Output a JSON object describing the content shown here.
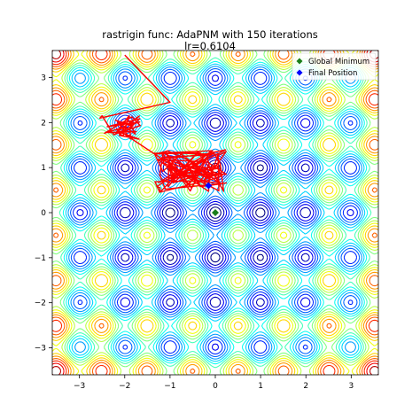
{
  "chart_data": {
    "type": "contour",
    "title": "rastrigin func: AdaPNM with 150 iterations",
    "subtitle": "lr=0.6104",
    "xlim": [
      -3.6,
      3.6
    ],
    "ylim": [
      -3.6,
      3.6
    ],
    "xticks": [
      -3,
      -2,
      -1,
      0,
      1,
      2,
      3
    ],
    "yticks": [
      -3,
      -2,
      -1,
      0,
      1,
      2,
      3
    ],
    "xtick_labels": [
      "−3",
      "−2",
      "−1",
      "0",
      "1",
      "2",
      "3"
    ],
    "ytick_labels": [
      "−3",
      "−2",
      "−1",
      "0",
      "1",
      "2",
      "3"
    ],
    "contour_cmap": "jet",
    "global_minimum": {
      "x": 0,
      "y": 0,
      "color": "#1a7f1a",
      "marker": "diamond"
    },
    "final_position": {
      "x": -0.15,
      "y": 0.6,
      "color": "#0000ff",
      "marker": "diamond"
    },
    "path_color": "#ff0000",
    "path_start": {
      "x": -2.0,
      "y": 3.5
    },
    "legend": {
      "position": "upper right",
      "entries": [
        {
          "label": "Global Minimum",
          "color": "#1a7f1a"
        },
        {
          "label": "Final Position",
          "color": "#0000ff"
        }
      ]
    }
  }
}
